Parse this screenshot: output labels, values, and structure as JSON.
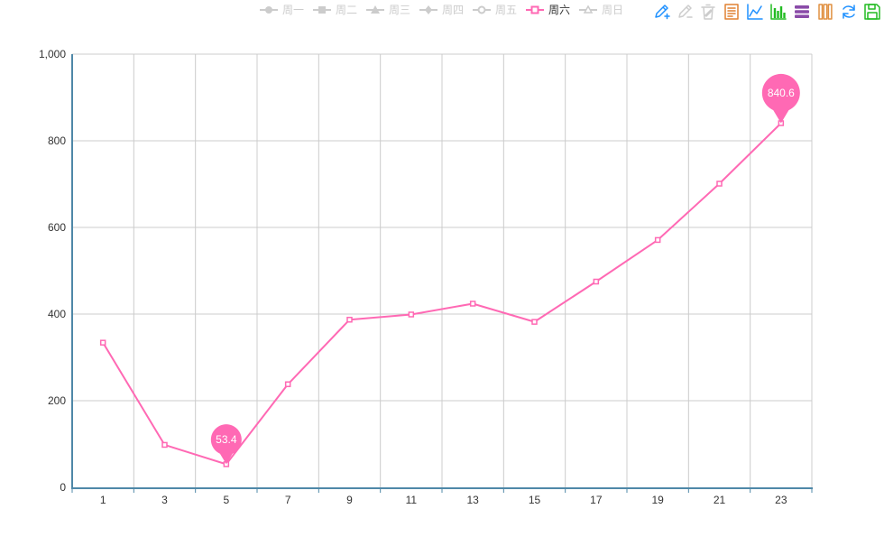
{
  "chart_data": {
    "type": "line",
    "x": [
      "1",
      "3",
      "5",
      "7",
      "9",
      "11",
      "13",
      "15",
      "17",
      "19",
      "21",
      "23"
    ],
    "ylim": [
      0,
      1000
    ],
    "yticks": [
      0,
      200,
      400,
      600,
      800,
      1000
    ],
    "ytick_labels": [
      "0",
      "200",
      "400",
      "600",
      "800",
      "1,000"
    ],
    "grid": true,
    "legend_placement": "top-center",
    "legend": [
      {
        "name": "周一",
        "symbol": "circle",
        "active": false
      },
      {
        "name": "周二",
        "symbol": "rect",
        "active": false
      },
      {
        "name": "周三",
        "symbol": "triangle",
        "active": false
      },
      {
        "name": "周四",
        "symbol": "diamond",
        "active": false
      },
      {
        "name": "周五",
        "symbol": "emptyCircle",
        "active": false
      },
      {
        "name": "周六",
        "symbol": "emptyRect",
        "active": true
      },
      {
        "name": "周日",
        "symbol": "emptyTriangle",
        "active": false
      }
    ],
    "series": [
      {
        "name": "周六",
        "values": [
          334,
          98,
          53.4,
          238,
          387,
          399,
          424,
          382,
          475,
          571,
          701,
          840.6
        ],
        "color": "#ff69b4",
        "visible": true
      }
    ],
    "mark_points": [
      {
        "label": "53.4",
        "index": 2,
        "value": 53.4
      },
      {
        "label": "840.6",
        "index": 11,
        "value": 840.6
      }
    ]
  },
  "colors": {
    "accent": "#ff69b4",
    "legend_inactive": "#cccccc",
    "legend_active_text": "#333333",
    "axis": "#4f88a8",
    "grid": "#cccccc",
    "tick_text": "#333333"
  },
  "toolbox": [
    {
      "icon": "mark-pencil-icon",
      "color": "#1e90ff"
    },
    {
      "icon": "mark-undo-icon",
      "color": "#cccccc"
    },
    {
      "icon": "mark-clear-icon",
      "color": "#cccccc"
    },
    {
      "icon": "data-view-icon",
      "color": "#e08030"
    },
    {
      "icon": "line-chart-icon",
      "color": "#1e90ff"
    },
    {
      "icon": "bar-chart-icon",
      "color": "#22bb22"
    },
    {
      "icon": "stack-icon",
      "color": "#8a4ba8"
    },
    {
      "icon": "tiled-icon",
      "color": "#e09040"
    },
    {
      "icon": "refresh-icon",
      "color": "#1e90ff"
    },
    {
      "icon": "save-image-icon",
      "color": "#22bb22"
    }
  ]
}
